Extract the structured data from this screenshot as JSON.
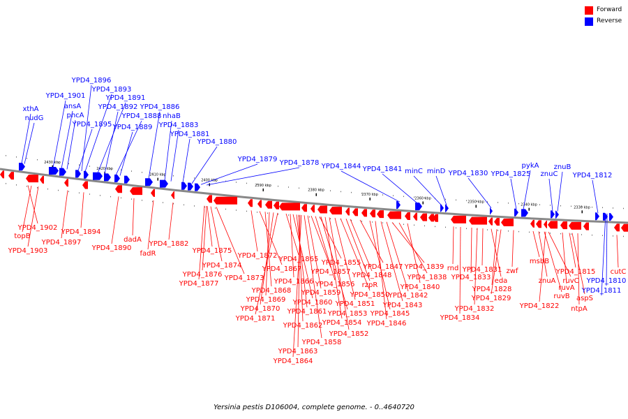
{
  "colors": {
    "forward": "#ff0000",
    "reverse": "#0000ff",
    "backbone": "#888888",
    "tick": "#000000"
  },
  "legend": [
    {
      "key": "forward",
      "label": "Forward",
      "color": "#ff0000"
    },
    {
      "key": "reverse",
      "label": "Reverse",
      "color": "#0000ff"
    }
  ],
  "caption": "Yersinia pestis D106004, complete genome. - 0..4640720",
  "scale_labels": [
    "2430 kbp",
    "2420 kbp",
    "2410 kbp",
    "2400 kbp",
    "2390 kbp",
    "2380 kbp",
    "2370 kbp",
    "2360 kbp",
    "2350 kbp",
    "2340 kbp",
    "2330 kbp"
  ],
  "reverse_labels": [
    "xthA",
    "nudG",
    "YPD4_1901",
    "ansA",
    "pncA",
    "YPD4_1895",
    "YPD4_1896",
    "YPD4_1893",
    "YPD4_1891",
    "YPD4_1892",
    "YPD4_1888",
    "YPD4_1889",
    "YPD4_1886",
    "nhaB",
    "YPD4_1883",
    "YPD4_1881",
    "YPD4_1880",
    "YPD4_1879",
    "YPD4_1878",
    "YPD4_1844",
    "YPD4_1841",
    "minC",
    "minD",
    "YPD4_1830",
    "YPD4_1825",
    "pykA",
    "znuC",
    "znuB",
    "YPD4_1812",
    "YPD4_1810",
    "YPD4_1811"
  ],
  "forward_labels": [
    "YPD4_1902",
    "topB",
    "YPD4_1903",
    "YPD4_1897",
    "YPD4_1894",
    "YPD4_1890",
    "dadA",
    "fadR",
    "YPD4_1882",
    "YPD4_1875",
    "YPD4_1874",
    "YPD4_1876",
    "YPD4_1877",
    "YPD4_1873",
    "YPD4_1872",
    "YPD4_1867",
    "YPD4_1868",
    "YPD4_1869",
    "YPD4_1870",
    "YPD4_1871",
    "YPD4_1865",
    "YPD4_1866",
    "YPD4_1860",
    "YPD4_1861",
    "YPD4_1862",
    "YPD4_1863",
    "YPD4_1864",
    "YPD4_1858",
    "YPD4_1859",
    "YPD4_1857",
    "YPD4_1856",
    "YPD4_1855",
    "YPD4_1853",
    "YPD4_1854",
    "YPD4_1852",
    "YPD4_1851",
    "YPD4_1850",
    "rzpR",
    "YPD4_1848",
    "YPD4_1847",
    "YPD4_1845",
    "YPD4_1846",
    "YPD4_1843",
    "YPD4_1842",
    "YPD4_1839",
    "YPD4_1838",
    "YPD4_1840",
    "rnd",
    "YPD4_1834",
    "YPD4_1833",
    "YPD4_1832",
    "YPD4_1831",
    "eda",
    "YPD4_1828",
    "YPD4_1829",
    "zwf",
    "msbB",
    "znuA",
    "ruvB",
    "ruvC",
    "ruvA",
    "YPD4_1815",
    "aspS",
    "ntpA",
    "YPD4_1822",
    "cutC"
  ]
}
